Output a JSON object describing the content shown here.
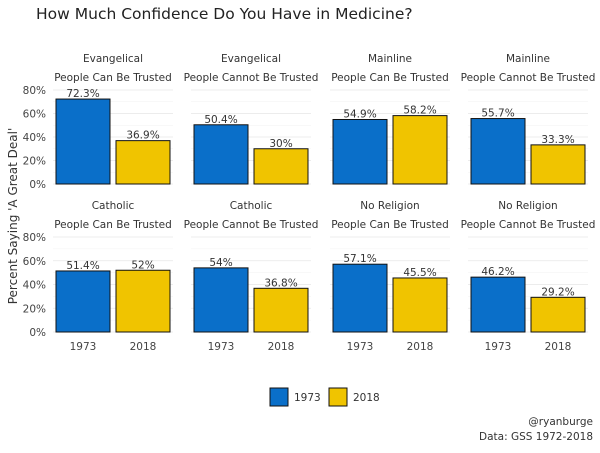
{
  "chart_data": {
    "type": "bar",
    "title": "How Much Confidence Do You Have in Medicine?",
    "ylabel": "Percent Saying 'A Great Deal'",
    "xlabel": "",
    "ylim": [
      0,
      80
    ],
    "yticks": [
      "0%",
      "20%",
      "40%",
      "60%",
      "80%"
    ],
    "categories": [
      "1973",
      "2018"
    ],
    "colors": {
      "1973": "#0a6fc9",
      "2018": "#f0c400"
    },
    "grid": true,
    "legend": {
      "position": "bottom",
      "entries": [
        "1973",
        "2018"
      ]
    },
    "panels": [
      {
        "group": "Evangelical",
        "trust": "People Can Be Trusted",
        "values": [
          72.3,
          36.9
        ],
        "labels": [
          "72.3%",
          "36.9%"
        ]
      },
      {
        "group": "Evangelical",
        "trust": "People Cannot Be Trusted",
        "values": [
          50.4,
          30
        ],
        "labels": [
          "50.4%",
          "30%"
        ]
      },
      {
        "group": "Mainline",
        "trust": "People Can Be Trusted",
        "values": [
          54.9,
          58.2
        ],
        "labels": [
          "54.9%",
          "58.2%"
        ]
      },
      {
        "group": "Mainline",
        "trust": "People Cannot Be Trusted",
        "values": [
          55.7,
          33.3
        ],
        "labels": [
          "55.7%",
          "33.3%"
        ]
      },
      {
        "group": "Catholic",
        "trust": "People Can Be Trusted",
        "values": [
          51.4,
          52
        ],
        "labels": [
          "51.4%",
          "52%"
        ]
      },
      {
        "group": "Catholic",
        "trust": "People Cannot Be Trusted",
        "values": [
          54,
          36.8
        ],
        "labels": [
          "54%",
          "36.8%"
        ]
      },
      {
        "group": "No Religion",
        "trust": "People Can Be Trusted",
        "values": [
          57.1,
          45.5
        ],
        "labels": [
          "57.1%",
          "45.5%"
        ]
      },
      {
        "group": "No Religion",
        "trust": "People Cannot Be Trusted",
        "values": [
          46.2,
          29.2
        ],
        "labels": [
          "46.2%",
          "29.2%"
        ]
      }
    ],
    "caption": [
      "@ryanburge",
      "Data: GSS 1972-2018"
    ]
  }
}
